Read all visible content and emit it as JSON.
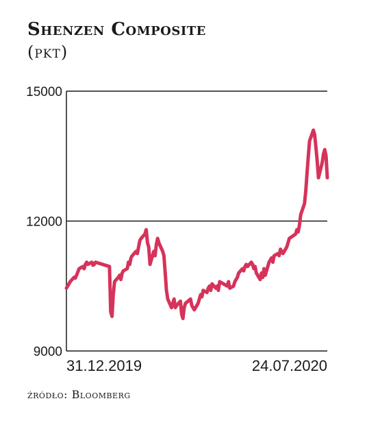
{
  "chart_data": {
    "type": "line",
    "title": "Shenzen Composite",
    "subtitle": "(pkt)",
    "xlabel": "",
    "ylabel": "",
    "ylim": [
      9000,
      15000
    ],
    "yticks": [
      9000,
      12000,
      15000
    ],
    "ytick_labels": [
      "9000",
      "12000",
      "15000"
    ],
    "xtick_labels": [
      "31.12.2019",
      "24.07.2020"
    ],
    "xlim": [
      "2019-12-31",
      "2020-07-24"
    ],
    "grid": "horizontal",
    "legend": "none",
    "line_color": "#d6335a",
    "series": [
      {
        "x": [
          "2019-12-31",
          "2020-01-02",
          "2020-01-03",
          "2020-01-06",
          "2020-01-07",
          "2020-01-08",
          "2020-01-09",
          "2020-01-10",
          "2020-01-13",
          "2020-01-14",
          "2020-01-15",
          "2020-01-16",
          "2020-01-17",
          "2020-01-20",
          "2020-01-21",
          "2020-01-22",
          "2020-01-23",
          "2020-02-03",
          "2020-02-04",
          "2020-02-05",
          "2020-02-06",
          "2020-02-07",
          "2020-02-10",
          "2020-02-11",
          "2020-02-12",
          "2020-02-13",
          "2020-02-14",
          "2020-02-17",
          "2020-02-18",
          "2020-02-19",
          "2020-02-20",
          "2020-02-21",
          "2020-02-24",
          "2020-02-25",
          "2020-02-26",
          "2020-02-27",
          "2020-02-28",
          "2020-03-02",
          "2020-03-03",
          "2020-03-04",
          "2020-03-05",
          "2020-03-06",
          "2020-03-09",
          "2020-03-10",
          "2020-03-11",
          "2020-03-12",
          "2020-03-13",
          "2020-03-16",
          "2020-03-17",
          "2020-03-18",
          "2020-03-19",
          "2020-03-20",
          "2020-03-23",
          "2020-03-24",
          "2020-03-25",
          "2020-03-26",
          "2020-03-27",
          "2020-03-30",
          "2020-03-31",
          "2020-04-01",
          "2020-04-02",
          "2020-04-03",
          "2020-04-07",
          "2020-04-08",
          "2020-04-09",
          "2020-04-10",
          "2020-04-13",
          "2020-04-14",
          "2020-04-15",
          "2020-04-16",
          "2020-04-17",
          "2020-04-20",
          "2020-04-21",
          "2020-04-22",
          "2020-04-23",
          "2020-04-24",
          "2020-04-27",
          "2020-04-28",
          "2020-04-29",
          "2020-04-30",
          "2020-05-06",
          "2020-05-07",
          "2020-05-08",
          "2020-05-11",
          "2020-05-12",
          "2020-05-13",
          "2020-05-14",
          "2020-05-15",
          "2020-05-18",
          "2020-05-19",
          "2020-05-20",
          "2020-05-21",
          "2020-05-22",
          "2020-05-25",
          "2020-05-26",
          "2020-05-27",
          "2020-05-28",
          "2020-05-29",
          "2020-06-01",
          "2020-06-02",
          "2020-06-03",
          "2020-06-04",
          "2020-06-05",
          "2020-06-08",
          "2020-06-09",
          "2020-06-10",
          "2020-06-11",
          "2020-06-12",
          "2020-06-15",
          "2020-06-16",
          "2020-06-17",
          "2020-06-18",
          "2020-06-19",
          "2020-06-22",
          "2020-06-23",
          "2020-06-24",
          "2020-06-29",
          "2020-06-30",
          "2020-07-01",
          "2020-07-02",
          "2020-07-03",
          "2020-07-06",
          "2020-07-07",
          "2020-07-08",
          "2020-07-09",
          "2020-07-10",
          "2020-07-13",
          "2020-07-14",
          "2020-07-15",
          "2020-07-16",
          "2020-07-17",
          "2020-07-20",
          "2020-07-21",
          "2020-07-22",
          "2020-07-23",
          "2020-07-24"
        ],
        "values": [
          10450,
          10550,
          10600,
          10700,
          10680,
          10750,
          10820,
          10900,
          10950,
          10900,
          11000,
          11050,
          11000,
          11050,
          10980,
          11000,
          11050,
          10950,
          9900,
          9800,
          10300,
          10600,
          10700,
          10750,
          10650,
          10800,
          10850,
          10900,
          11050,
          11000,
          11150,
          11200,
          11300,
          11250,
          11400,
          11550,
          11600,
          11700,
          11800,
          11500,
          11400,
          11000,
          11300,
          11200,
          11450,
          11600,
          11500,
          11300,
          11200,
          10800,
          10400,
          10200,
          10000,
          10100,
          10200,
          10000,
          10050,
          10150,
          9850,
          9750,
          10000,
          10100,
          10200,
          10050,
          10000,
          9950,
          10100,
          10200,
          10300,
          10250,
          10400,
          10350,
          10450,
          10500,
          10400,
          10550,
          10450,
          10500,
          10400,
          10600,
          10500,
          10600,
          10450,
          10500,
          10600,
          10650,
          10700,
          10800,
          10900,
          10850,
          10950,
          11000,
          10950,
          11050,
          11000,
          10900,
          10950,
          10800,
          10650,
          10800,
          10700,
          10900,
          10750,
          11050,
          11100,
          11150,
          11050,
          11200,
          11250,
          11200,
          11350,
          11300,
          11250,
          11400,
          11500,
          11600,
          11700,
          11800,
          11750,
          11900,
          12150,
          12400,
          12700,
          13100,
          13500,
          13850,
          14100,
          14000,
          13700,
          13400,
          13000,
          13350,
          13550,
          13650,
          13500,
          13000
        ]
      }
    ],
    "source": "źródło: Bloomberg"
  }
}
